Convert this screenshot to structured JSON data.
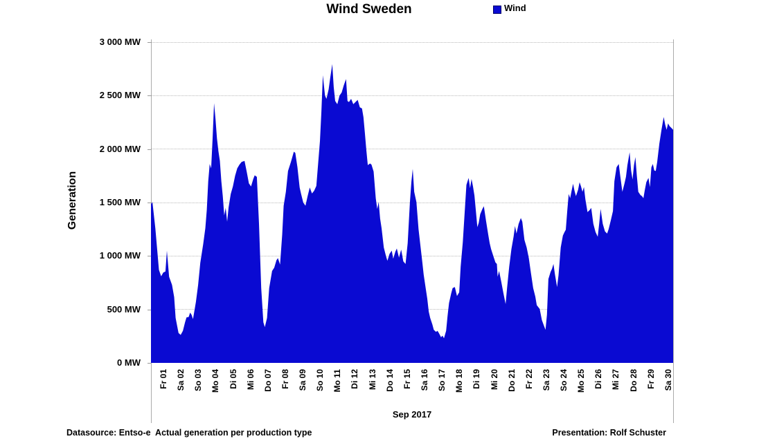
{
  "title": "Wind Sweden",
  "legend": {
    "label": "Wind",
    "color": "#0a0ad2"
  },
  "y_axis": {
    "title": "Generation",
    "tick_labels": [
      "3 000 MW",
      "2 500 MW",
      "2 000 MW",
      "1 500 MW",
      "1 000 MW",
      "500 MW",
      "0 MW"
    ]
  },
  "x_axis": {
    "title": "Sep 2017",
    "labels": [
      "Fr 01",
      "Sa 02",
      "So 03",
      "Mo 04",
      "Di 05",
      "Mi 06",
      "Do 07",
      "Fr 08",
      "Sa 09",
      "So 10",
      "Mo 11",
      "Di 12",
      "Mi 13",
      "Do 14",
      "Fr 15",
      "Sa 16",
      "So 17",
      "Mo 18",
      "Di 19",
      "Mi 20",
      "Do 21",
      "Fr 22",
      "Sa 23",
      "So 24",
      "Mo 25",
      "Di 26",
      "Mi 27",
      "Do 28",
      "Fr 29",
      "Sa 30"
    ]
  },
  "footer": {
    "left": "Datasource: Entso-e  Actual generation per production type",
    "right": "Presentation: Rolf Schuster"
  },
  "chart_data": {
    "type": "area",
    "title": "Wind Sweden",
    "xlabel": "Sep 2017",
    "ylabel": "Generation",
    "unit": "MW",
    "ylim": [
      0,
      3000
    ],
    "y_step": 500,
    "x_range_hours": [
      0,
      720
    ],
    "grid": "horizontal-dotted",
    "legend_position": "top",
    "area_color": "#0a0ad2",
    "series": [
      {
        "name": "Wind",
        "points_hour_mw": [
          [
            0,
            1485
          ],
          [
            2,
            1505
          ],
          [
            6,
            1260
          ],
          [
            11,
            870
          ],
          [
            14,
            810
          ],
          [
            17,
            845
          ],
          [
            20,
            855
          ],
          [
            22,
            1050
          ],
          [
            25,
            805
          ],
          [
            29,
            730
          ],
          [
            32,
            615
          ],
          [
            34,
            420
          ],
          [
            38,
            280
          ],
          [
            41,
            262
          ],
          [
            44,
            300
          ],
          [
            47,
            380
          ],
          [
            49,
            425
          ],
          [
            52,
            430
          ],
          [
            54,
            470
          ],
          [
            56,
            450
          ],
          [
            58,
            410
          ],
          [
            62,
            570
          ],
          [
            65,
            730
          ],
          [
            68,
            935
          ],
          [
            72,
            1110
          ],
          [
            75,
            1260
          ],
          [
            77,
            1430
          ],
          [
            79,
            1700
          ],
          [
            81,
            1860
          ],
          [
            83,
            1820
          ],
          [
            85,
            2100
          ],
          [
            87,
            2430
          ],
          [
            89,
            2280
          ],
          [
            91,
            2100
          ],
          [
            93,
            1980
          ],
          [
            95,
            1890
          ],
          [
            97,
            1700
          ],
          [
            99,
            1560
          ],
          [
            101,
            1380
          ],
          [
            103,
            1450
          ],
          [
            105,
            1320
          ],
          [
            107,
            1455
          ],
          [
            110,
            1580
          ],
          [
            113,
            1650
          ],
          [
            116,
            1750
          ],
          [
            119,
            1820
          ],
          [
            122,
            1855
          ],
          [
            125,
            1880
          ],
          [
            129,
            1890
          ],
          [
            132,
            1790
          ],
          [
            135,
            1680
          ],
          [
            138,
            1650
          ],
          [
            141,
            1720
          ],
          [
            143,
            1755
          ],
          [
            146,
            1740
          ],
          [
            149,
            1300
          ],
          [
            152,
            700
          ],
          [
            155,
            380
          ],
          [
            157,
            335
          ],
          [
            160,
            420
          ],
          [
            163,
            700
          ],
          [
            167,
            860
          ],
          [
            170,
            890
          ],
          [
            173,
            960
          ],
          [
            175,
            980
          ],
          [
            178,
            920
          ],
          [
            181,
            1200
          ],
          [
            183,
            1470
          ],
          [
            186,
            1600
          ],
          [
            189,
            1795
          ],
          [
            193,
            1880
          ],
          [
            197,
            1975
          ],
          [
            199,
            1965
          ],
          [
            202,
            1830
          ],
          [
            205,
            1640
          ],
          [
            207,
            1580
          ],
          [
            210,
            1500
          ],
          [
            213,
            1470
          ],
          [
            216,
            1560
          ],
          [
            219,
            1640
          ],
          [
            222,
            1585
          ],
          [
            225,
            1610
          ],
          [
            228,
            1655
          ],
          [
            230,
            1825
          ],
          [
            233,
            2075
          ],
          [
            235,
            2350
          ],
          [
            237,
            2690
          ],
          [
            240,
            2500
          ],
          [
            242,
            2470
          ],
          [
            245,
            2560
          ],
          [
            247,
            2660
          ],
          [
            250,
            2795
          ],
          [
            252,
            2580
          ],
          [
            254,
            2450
          ],
          [
            257,
            2420
          ],
          [
            260,
            2500
          ],
          [
            263,
            2530
          ],
          [
            266,
            2600
          ],
          [
            269,
            2655
          ],
          [
            271,
            2450
          ],
          [
            273,
            2440
          ],
          [
            276,
            2470
          ],
          [
            279,
            2420
          ],
          [
            282,
            2440
          ],
          [
            285,
            2460
          ],
          [
            288,
            2390
          ],
          [
            291,
            2380
          ],
          [
            293,
            2300
          ],
          [
            295,
            2150
          ],
          [
            297,
            1990
          ],
          [
            299,
            1850
          ],
          [
            302,
            1865
          ],
          [
            304,
            1855
          ],
          [
            307,
            1790
          ],
          [
            310,
            1540
          ],
          [
            312,
            1440
          ],
          [
            314,
            1505
          ],
          [
            316,
            1350
          ],
          [
            318,
            1260
          ],
          [
            321,
            1080
          ],
          [
            324,
            1000
          ],
          [
            326,
            955
          ],
          [
            329,
            1020
          ],
          [
            332,
            1050
          ],
          [
            334,
            975
          ],
          [
            337,
            1040
          ],
          [
            339,
            1070
          ],
          [
            342,
            985
          ],
          [
            345,
            1060
          ],
          [
            348,
            950
          ],
          [
            351,
            925
          ],
          [
            354,
            1120
          ],
          [
            357,
            1500
          ],
          [
            359,
            1690
          ],
          [
            361,
            1815
          ],
          [
            363,
            1600
          ],
          [
            366,
            1505
          ],
          [
            369,
            1250
          ],
          [
            371,
            1130
          ],
          [
            374,
            950
          ],
          [
            376,
            825
          ],
          [
            379,
            690
          ],
          [
            381,
            600
          ],
          [
            383,
            480
          ],
          [
            385,
            420
          ],
          [
            388,
            360
          ],
          [
            390,
            310
          ],
          [
            393,
            290
          ],
          [
            395,
            300
          ],
          [
            397,
            280
          ],
          [
            400,
            240
          ],
          [
            402,
            255
          ],
          [
            404,
            230
          ],
          [
            407,
            300
          ],
          [
            409,
            440
          ],
          [
            411,
            560
          ],
          [
            414,
            650
          ],
          [
            416,
            700
          ],
          [
            419,
            710
          ],
          [
            422,
            625
          ],
          [
            425,
            660
          ],
          [
            427,
            900
          ],
          [
            430,
            1130
          ],
          [
            433,
            1450
          ],
          [
            435,
            1665
          ],
          [
            438,
            1730
          ],
          [
            440,
            1635
          ],
          [
            442,
            1720
          ],
          [
            444,
            1650
          ],
          [
            446,
            1565
          ],
          [
            448,
            1420
          ],
          [
            450,
            1270
          ],
          [
            452,
            1310
          ],
          [
            454,
            1390
          ],
          [
            457,
            1440
          ],
          [
            459,
            1465
          ],
          [
            462,
            1330
          ],
          [
            465,
            1200
          ],
          [
            467,
            1120
          ],
          [
            469,
            1065
          ],
          [
            472,
            1000
          ],
          [
            475,
            940
          ],
          [
            477,
            925
          ],
          [
            478,
            807
          ],
          [
            480,
            860
          ],
          [
            483,
            760
          ],
          [
            486,
            650
          ],
          [
            489,
            550
          ],
          [
            491,
            700
          ],
          [
            494,
            900
          ],
          [
            497,
            1065
          ],
          [
            500,
            1180
          ],
          [
            502,
            1280
          ],
          [
            504,
            1210
          ],
          [
            507,
            1300
          ],
          [
            510,
            1355
          ],
          [
            512,
            1320
          ],
          [
            515,
            1150
          ],
          [
            518,
            1080
          ],
          [
            521,
            980
          ],
          [
            524,
            840
          ],
          [
            527,
            700
          ],
          [
            530,
            620
          ],
          [
            532,
            540
          ],
          [
            536,
            505
          ],
          [
            539,
            400
          ],
          [
            542,
            345
          ],
          [
            544,
            310
          ],
          [
            546,
            450
          ],
          [
            548,
            785
          ],
          [
            551,
            850
          ],
          [
            553,
            880
          ],
          [
            555,
            925
          ],
          [
            557,
            830
          ],
          [
            560,
            710
          ],
          [
            562,
            820
          ],
          [
            565,
            1080
          ],
          [
            568,
            1190
          ],
          [
            570,
            1220
          ],
          [
            572,
            1245
          ],
          [
            574,
            1420
          ],
          [
            576,
            1580
          ],
          [
            578,
            1540
          ],
          [
            580,
            1610
          ],
          [
            582,
            1675
          ],
          [
            584,
            1610
          ],
          [
            586,
            1560
          ],
          [
            589,
            1620
          ],
          [
            591,
            1690
          ],
          [
            593,
            1650
          ],
          [
            595,
            1600
          ],
          [
            597,
            1645
          ],
          [
            599,
            1530
          ],
          [
            602,
            1410
          ],
          [
            605,
            1430
          ],
          [
            607,
            1450
          ],
          [
            610,
            1300
          ],
          [
            613,
            1225
          ],
          [
            616,
            1180
          ],
          [
            618,
            1300
          ],
          [
            620,
            1440
          ],
          [
            623,
            1300
          ],
          [
            626,
            1230
          ],
          [
            629,
            1210
          ],
          [
            631,
            1250
          ],
          [
            634,
            1330
          ],
          [
            637,
            1420
          ],
          [
            639,
            1700
          ],
          [
            642,
            1830
          ],
          [
            645,
            1860
          ],
          [
            647,
            1750
          ],
          [
            650,
            1600
          ],
          [
            653,
            1680
          ],
          [
            655,
            1740
          ],
          [
            657,
            1850
          ],
          [
            660,
            1970
          ],
          [
            662,
            1800
          ],
          [
            664,
            1715
          ],
          [
            666,
            1850
          ],
          [
            668,
            1925
          ],
          [
            670,
            1750
          ],
          [
            672,
            1600
          ],
          [
            675,
            1570
          ],
          [
            677,
            1560
          ],
          [
            679,
            1540
          ],
          [
            681,
            1620
          ],
          [
            683,
            1690
          ],
          [
            686,
            1730
          ],
          [
            688,
            1645
          ],
          [
            690,
            1830
          ],
          [
            692,
            1860
          ],
          [
            694,
            1800
          ],
          [
            696,
            1795
          ],
          [
            698,
            1880
          ],
          [
            701,
            2050
          ],
          [
            704,
            2180
          ],
          [
            707,
            2300
          ],
          [
            709,
            2230
          ],
          [
            711,
            2180
          ],
          [
            713,
            2240
          ],
          [
            715,
            2215
          ],
          [
            718,
            2195
          ],
          [
            720,
            2180
          ]
        ]
      }
    ]
  }
}
